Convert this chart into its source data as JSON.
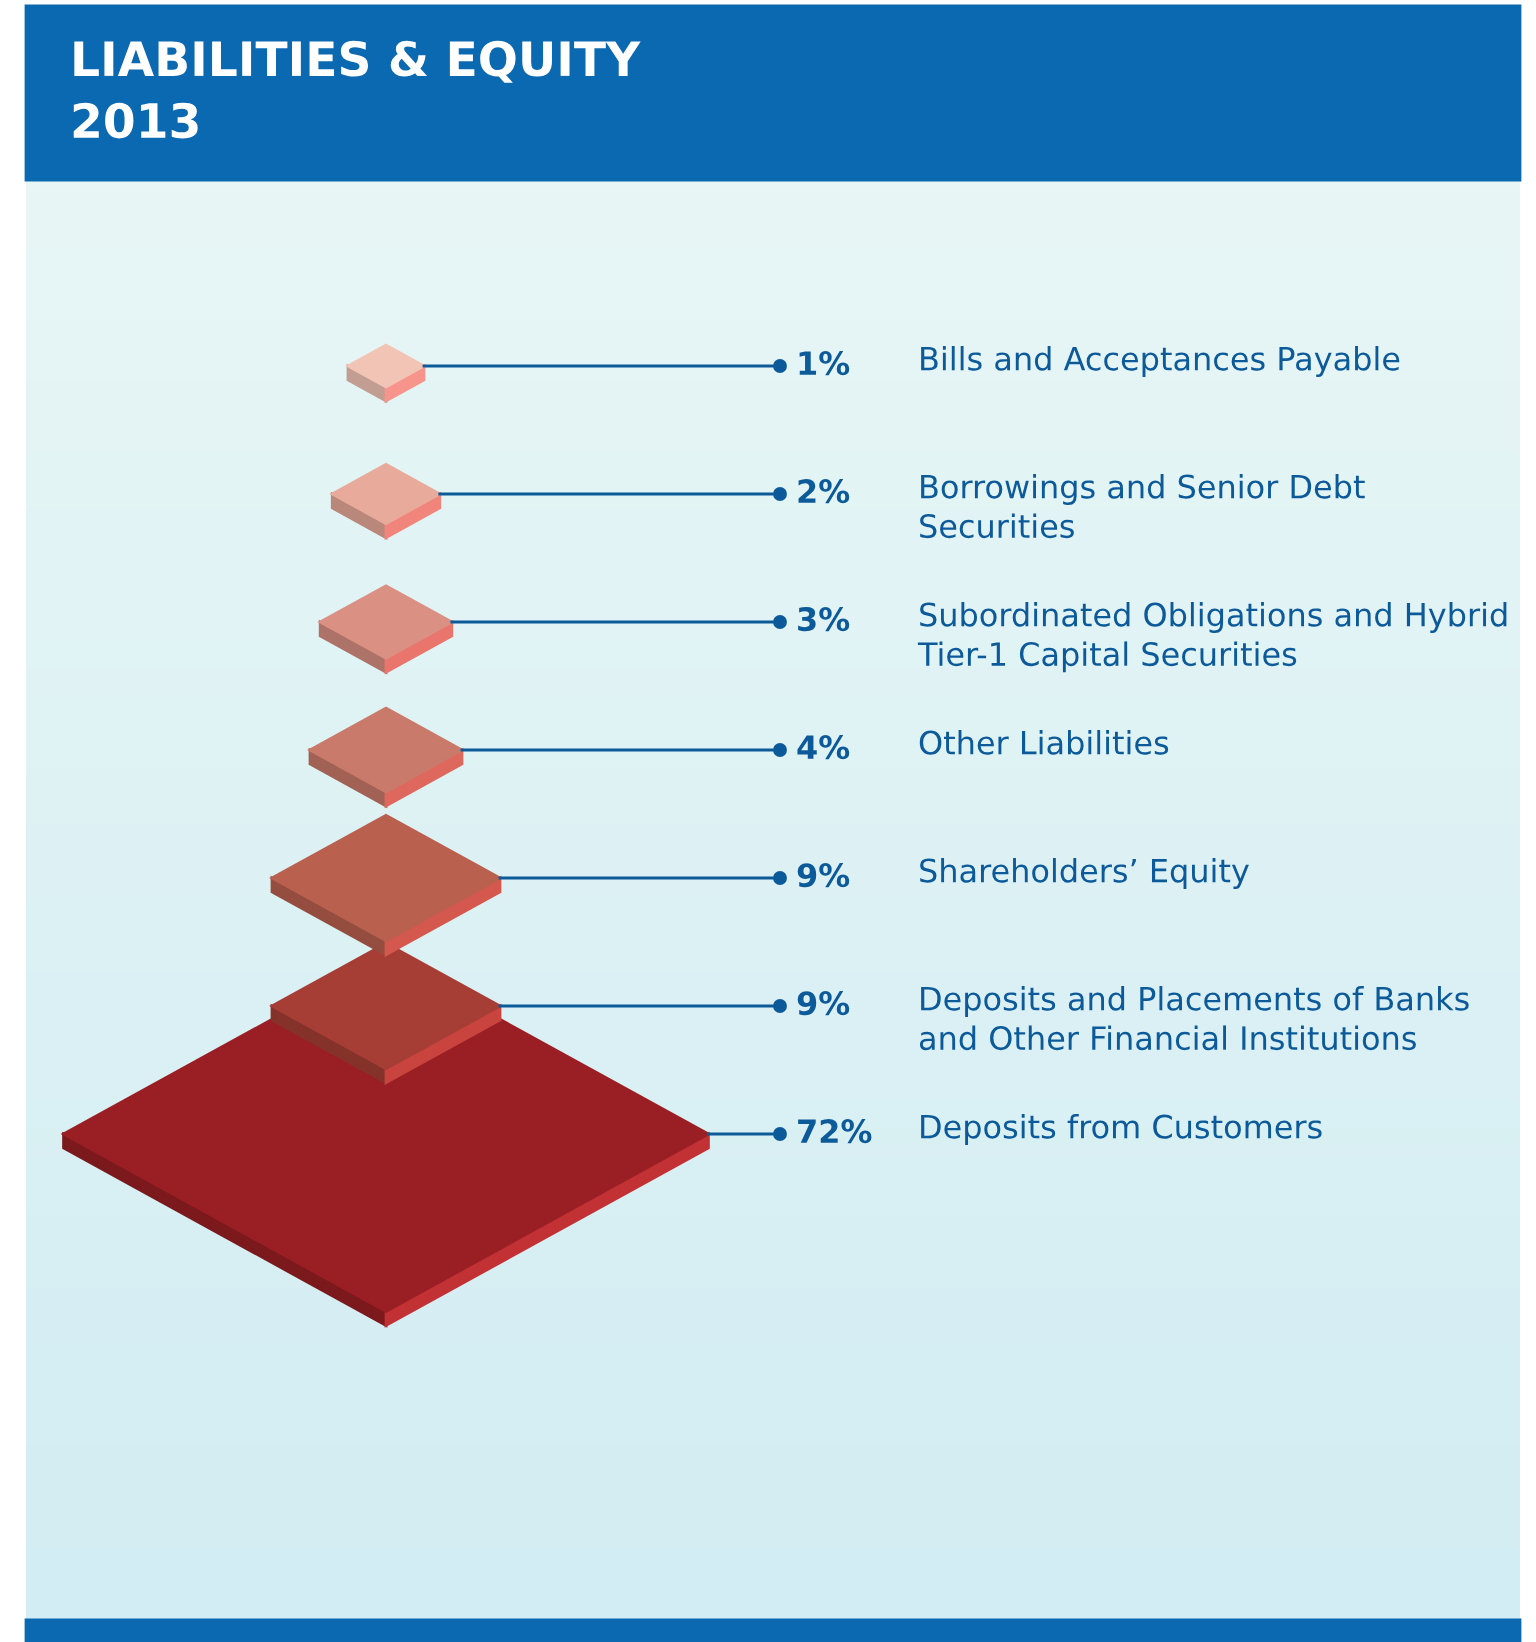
{
  "chart_data": {
    "type": "other",
    "title": "LIABILITIES & EQUITY\n2013",
    "categories": [
      "Bills and Acceptances Payable",
      "Borrowings and Senior Debt\nSecurities",
      "Subordinated Obligations and Hybrid\nTier-1 Capital Securities",
      "Other Liabilities",
      "Shareholders’ Equity",
      "Deposits and Placements of Banks\nand Other Financial Institutions",
      "Deposits from Customers"
    ],
    "values": [
      1,
      2,
      3,
      4,
      9,
      9,
      72
    ],
    "value_labels": [
      "1%",
      "2%",
      "3%",
      "4%",
      "9%",
      "9%",
      "72%"
    ],
    "colors": [
      "#f2c4b6",
      "#e8aa9a",
      "#da9082",
      "#c97a6a",
      "#b9604f",
      "#a63e36",
      "#9a1f24"
    ]
  }
}
